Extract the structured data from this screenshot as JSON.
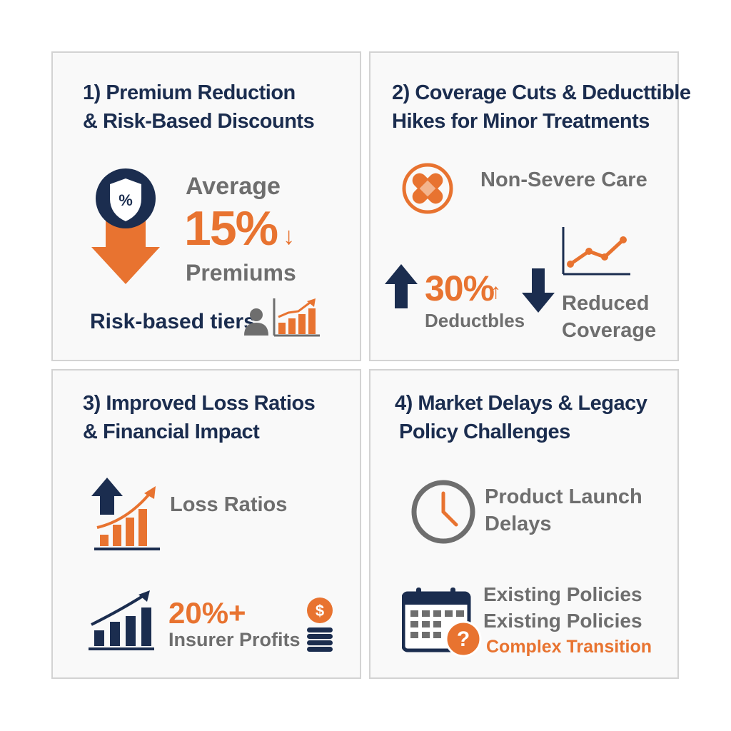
{
  "colors": {
    "navy": "#1b2d4f",
    "orange": "#e87330",
    "gray": "#6e6e6e",
    "panel_border": "#d3d3d3"
  },
  "panel1": {
    "title_line1": "1) Premium Reduction",
    "title_line2": "& Risk-Based Discounts",
    "shield_symbol": "%",
    "label_top": "Average",
    "stat": "15%",
    "stat_arrow": "↓",
    "label_bottom": "Premiums",
    "tiers_label": "Risk-based tiers",
    "icons": [
      "shield-percent-icon",
      "down-arrow-icon",
      "person-icon",
      "bar-chart-up-icon"
    ]
  },
  "panel2": {
    "title_line1": "2) Coverage Cuts & Deducttible",
    "title_line2": "Hikes for Minor Treatments",
    "care_label": "Non-Severe Care",
    "stat": "30%",
    "stat_arrow": "↑",
    "deductibles_label": "Deductbles",
    "coverage_line1": "Reduced",
    "coverage_line2": "Coverage",
    "icons": [
      "bandage-icon",
      "line-chart-icon",
      "up-arrow-icon",
      "down-arrow-icon"
    ]
  },
  "panel3": {
    "title_line1": "3) Improved Loss Ratios",
    "title_line2": "& Financial Impact",
    "loss_label": "Loss Ratios",
    "stat": "20%+",
    "profits_label": "Insurer Profits",
    "coin_symbol": "$",
    "icons": [
      "up-arrow-bar-chart-icon",
      "growth-bar-chart-icon",
      "coin-stack-icon"
    ]
  },
  "panel4": {
    "title_line1": "4) Market Delays & Legacy",
    "title_line2": "Policy Challenges",
    "launch_line1": "Product Launch",
    "launch_line2": "Delays",
    "policies_line1": "Existing Policies",
    "policies_line2": "Existing Policies",
    "transition_label": "Complex Transition",
    "question_symbol": "?",
    "icons": [
      "clock-icon",
      "calendar-icon",
      "question-icon"
    ]
  }
}
